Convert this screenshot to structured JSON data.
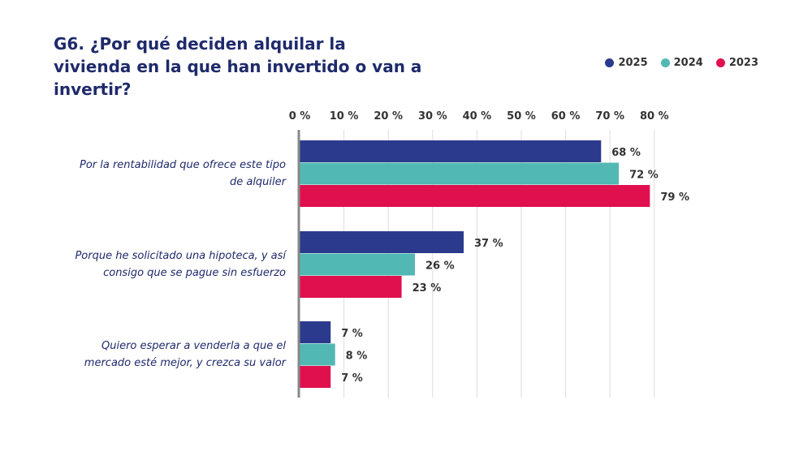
{
  "title": "G6. ¿Por qué deciden alquilar la vivienda en la que han invertido o van a invertir?",
  "chart_data": {
    "type": "bar",
    "orientation": "horizontal",
    "categories": [
      "Por la rentabilidad que ofrece este tipo de alquiler",
      "Porque he solicitado una hipoteca, y así consigo que se pague sin esfuerzo",
      "Quiero esperar a venderla a que el mercado esté mejor, y crezca su valor"
    ],
    "series": [
      {
        "name": "2025",
        "color": "#2b3a8c",
        "values": [
          68,
          37,
          7
        ]
      },
      {
        "name": "2024",
        "color": "#52b8b4",
        "values": [
          72,
          26,
          8
        ]
      },
      {
        "name": "2023",
        "color": "#e0104f",
        "values": [
          79,
          23,
          7
        ]
      }
    ],
    "value_labels": [
      [
        "68 %",
        "37 %",
        "7 %"
      ],
      [
        "72 %",
        "26 %",
        "8 %"
      ],
      [
        "79 %",
        "23 %",
        "7 %"
      ]
    ],
    "xlim": [
      0,
      80
    ],
    "x_ticks": [
      "0 %",
      "10 %",
      "20 %",
      "30 %",
      "40 %",
      "50 %",
      "60 %",
      "70 %",
      "80 %"
    ],
    "grid": true,
    "legend_position": "top-right"
  }
}
